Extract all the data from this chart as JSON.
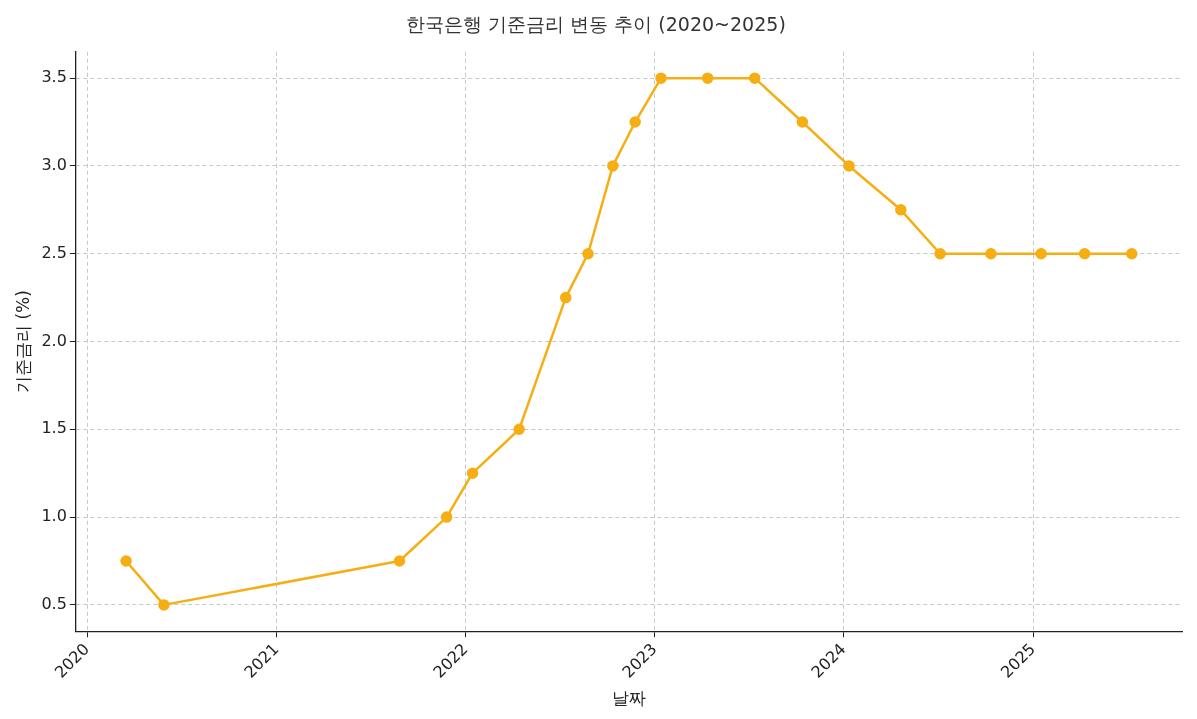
{
  "chart_data": {
    "type": "line",
    "title": "한국은행 기준금리 변동 추이 (2020~2025)",
    "xlabel": "날짜",
    "ylabel": "기준금리 (%)",
    "x": [
      "2020-03-16",
      "2020-05-28",
      "2021-08-26",
      "2021-11-25",
      "2022-01-14",
      "2022-04-14",
      "2022-07-13",
      "2022-08-25",
      "2022-10-12",
      "2022-11-24",
      "2023-01-13",
      "2023-04-13",
      "2023-07-13",
      "2023-10-13",
      "2024-01-11",
      "2024-04-20",
      "2024-07-05",
      "2024-10-11",
      "2025-01-16",
      "2025-04-10",
      "2025-07-10"
    ],
    "series": [
      {
        "color": "#f5ae13",
        "values": [
          0.75,
          0.5,
          0.75,
          1.0,
          1.25,
          1.5,
          2.25,
          2.5,
          3.0,
          3.25,
          3.5,
          3.5,
          3.5,
          3.25,
          3.0,
          2.75,
          2.5,
          2.5,
          2.5,
          2.5,
          2.5
        ]
      }
    ],
    "xlim": [
      "2019-12-10",
      "2025-10-15"
    ],
    "xticks": [
      "2020",
      "2021",
      "2022",
      "2023",
      "2024",
      "2025"
    ],
    "ylim": [
      0.35,
      3.65
    ],
    "yticks": [
      0.5,
      {
        "value": 1,
        "label": "1.0"
      },
      1.5,
      {
        "value": 2,
        "label": "2.0"
      },
      2.5,
      {
        "value": 3,
        "label": "3.0"
      },
      3.5
    ],
    "grid": true,
    "legend": false,
    "marker": "circle",
    "line_style": "solid"
  }
}
